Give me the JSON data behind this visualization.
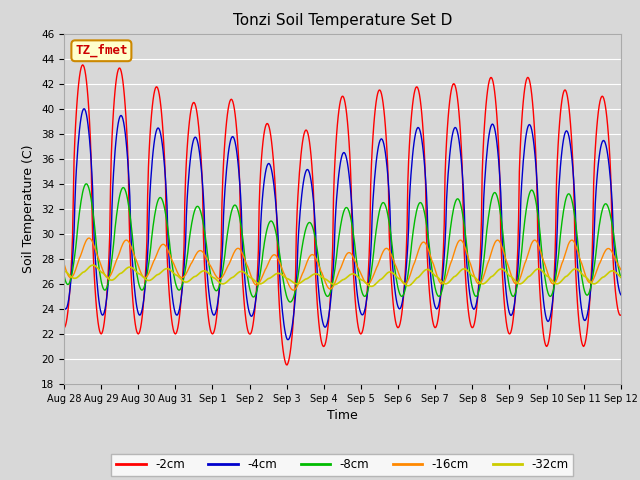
{
  "title": "Tonzi Soil Temperature Set D",
  "xlabel": "Time",
  "ylabel": "Soil Temperature (C)",
  "ylim": [
    18,
    46
  ],
  "yticks": [
    18,
    20,
    22,
    24,
    26,
    28,
    30,
    32,
    34,
    36,
    38,
    40,
    42,
    44,
    46
  ],
  "background_color": "#d8d8d8",
  "plot_bg_color": "#d8d8d8",
  "grid_color": "#ffffff",
  "legend_label": "TZ_fmet",
  "series_colors": [
    "#ff0000",
    "#0000cc",
    "#00bb00",
    "#ff8800",
    "#cccc00"
  ],
  "series_labels": [
    "-2cm",
    "-4cm",
    "-8cm",
    "-16cm",
    "-32cm"
  ],
  "series_linewidths": [
    1.0,
    1.0,
    1.0,
    1.0,
    1.2
  ],
  "tick_labels": [
    "Aug 28",
    "Aug 29",
    "Aug 30",
    "Aug 31",
    "Sep 1",
    "Sep 2",
    "Sep 3",
    "Sep 4",
    "Sep 5",
    "Sep 6",
    "Sep 7",
    "Sep 8",
    "Sep 9",
    "Sep 10",
    "Sep 11",
    "Sep 12"
  ],
  "figsize": [
    6.4,
    4.8
  ],
  "dpi": 100
}
